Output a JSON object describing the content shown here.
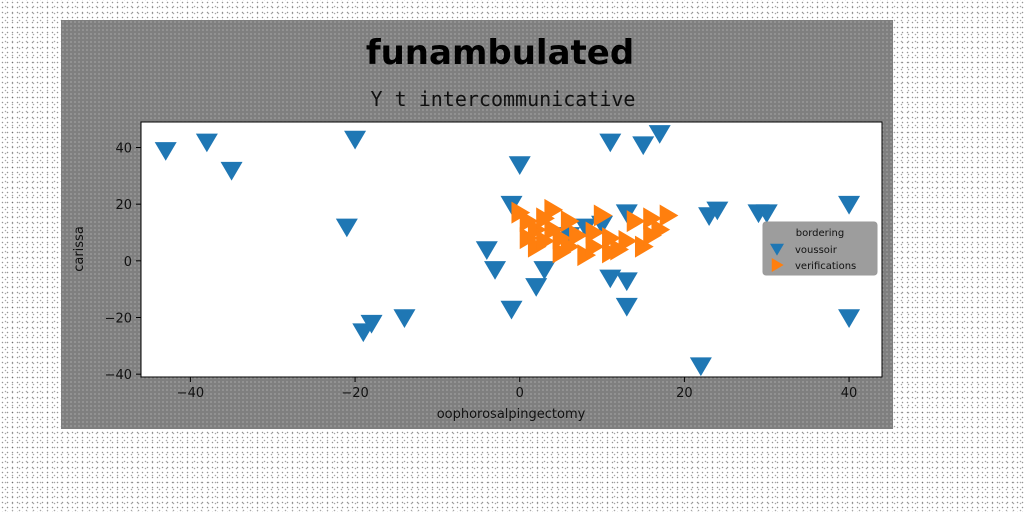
{
  "chart_data": {
    "type": "scatter",
    "suptitle": "funambulated",
    "title": "Y t intercommunicative",
    "xlabel": "oophorosalpingectomy",
    "ylabel": "carissa",
    "xlim": [
      -46,
      44
    ],
    "ylim": [
      -41,
      49
    ],
    "xticks": [
      -40,
      -20,
      0,
      20,
      40
    ],
    "yticks": [
      -40,
      -20,
      0,
      20,
      40
    ],
    "xtick_labels": [
      "−40",
      "−20",
      "0",
      "20",
      "40"
    ],
    "ytick_labels": [
      "−40",
      "−20",
      "0",
      "20",
      "40"
    ],
    "grid": false,
    "legend": {
      "title": "bordering",
      "placement": "center-right"
    },
    "series": [
      {
        "name": "voussoir",
        "color": "#1f77b4",
        "marker": "triangle-down",
        "points": [
          [
            -43,
            39
          ],
          [
            -38,
            42
          ],
          [
            -35,
            32
          ],
          [
            -20,
            43
          ],
          [
            -21,
            12
          ],
          [
            -19,
            -25
          ],
          [
            -18,
            -22
          ],
          [
            -14,
            -20
          ],
          [
            0,
            34
          ],
          [
            -1,
            20
          ],
          [
            -4,
            4
          ],
          [
            -3,
            -3
          ],
          [
            -1,
            -17
          ],
          [
            2,
            -9
          ],
          [
            3,
            -3
          ],
          [
            11,
            42
          ],
          [
            15,
            41
          ],
          [
            17,
            45
          ],
          [
            10,
            13
          ],
          [
            13,
            17
          ],
          [
            11,
            -6
          ],
          [
            13,
            -7
          ],
          [
            13,
            -16
          ],
          [
            23,
            16
          ],
          [
            24,
            18
          ],
          [
            29,
            17
          ],
          [
            30,
            17
          ],
          [
            40,
            20
          ],
          [
            40,
            -20
          ],
          [
            22,
            -37
          ],
          [
            6,
            9
          ],
          [
            8,
            12
          ]
        ]
      },
      {
        "name": "verifications",
        "color": "#ff7f0e",
        "marker": "triangle-right",
        "points": [
          [
            0,
            17
          ],
          [
            1,
            14
          ],
          [
            1,
            8
          ],
          [
            2,
            5
          ],
          [
            2,
            11
          ],
          [
            3,
            15
          ],
          [
            4,
            18
          ],
          [
            4,
            11
          ],
          [
            5,
            8
          ],
          [
            5,
            3
          ],
          [
            6,
            14
          ],
          [
            7,
            9
          ],
          [
            8,
            2
          ],
          [
            9,
            5
          ],
          [
            10,
            16
          ],
          [
            11,
            3
          ],
          [
            11,
            8
          ],
          [
            12,
            4
          ],
          [
            13,
            7
          ],
          [
            14,
            14
          ],
          [
            15,
            5
          ],
          [
            16,
            9
          ],
          [
            16,
            15
          ],
          [
            17,
            11
          ],
          [
            18,
            16
          ],
          [
            3,
            7
          ],
          [
            6,
            5
          ],
          [
            9,
            10
          ]
        ]
      }
    ]
  }
}
